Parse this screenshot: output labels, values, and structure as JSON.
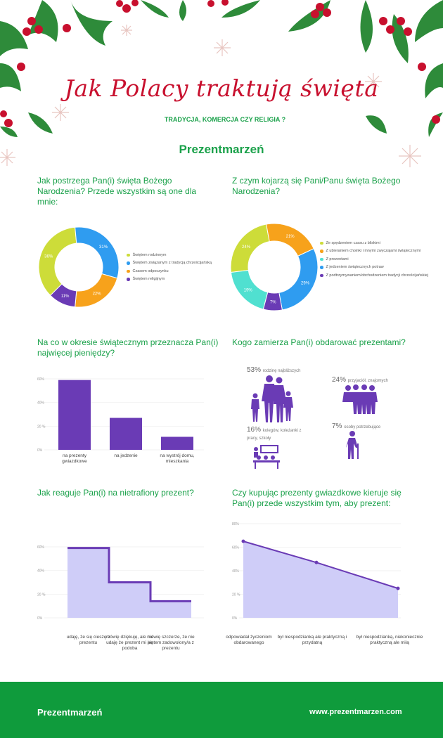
{
  "header": {
    "title": "Jak Polacy traktują święta",
    "subtitle": "TRADYCJA, KOMERCJA CZY RELIGIA ?",
    "brand": "Prezentmarzeń"
  },
  "colors": {
    "green": "#1aa14a",
    "red": "#c8102e",
    "purple": "#6a3bb5",
    "blue": "#2f9cf0",
    "orange": "#f7a21b",
    "lime": "#cddc39",
    "teal": "#50e0d0"
  },
  "q1": {
    "question": "Jak postrzega Pan(i) święta Bożego Narodzenia? Przede wszystkim są one dla mnie:"
  },
  "q2": {
    "question": "Z czym kojarzą się Pani/Panu święta Bożego Narodzenia?"
  },
  "q3": {
    "question": "Na co w okresie świątecznym przeznacza Pan(i) najwięcej pieniędzy?"
  },
  "q4": {
    "question": "Kogo zamierza Pan(i) obdarować prezentami?",
    "items": [
      {
        "pct": "53%",
        "label": "rodzinę najbliższych"
      },
      {
        "pct": "24%",
        "label": "przyjaciół, znajomych"
      },
      {
        "pct": "16%",
        "label": "kolegów, koleżanki z pracy, szkoły"
      },
      {
        "pct": "7%",
        "label": "osoby potrzebujące"
      }
    ]
  },
  "q5": {
    "question": "Jak reaguje Pan(i) na nietrafiony prezent?"
  },
  "q6": {
    "question": "Czy kupując prezenty gwiazdkowe kieruje się Pan(i) przede wszystkim tym, aby prezent:"
  },
  "footer": {
    "brand": "Prezentmarzeń",
    "url": "www.prezentmarzen.com"
  },
  "chart_data": [
    {
      "type": "pie",
      "categories": [
        "Świętem rodzinnym",
        "Świętem związanym z tradycją chrześcijańską",
        "Czasem odpoczynku",
        "Świętem religijnym"
      ],
      "values": [
        36,
        31,
        22,
        11
      ],
      "value_labels": [
        "36%",
        "31%",
        "22%",
        "11%"
      ],
      "colors": [
        "#cddc39",
        "#2f9cf0",
        "#f7a21b",
        "#6a3bb5"
      ]
    },
    {
      "type": "pie",
      "categories": [
        "Ze spędzeniem czasu z bliskimi",
        "Z ubieraniem choinki i innymi zwyczajami świątecznymi",
        "Z prezentami",
        "Z jedzeniem świątecznych potraw",
        "Z podtrzymywaniem/obchodzeniem tradycji chrześcijańskiej"
      ],
      "values": [
        24,
        21,
        19,
        29,
        7
      ],
      "value_labels": [
        "24%",
        "21%",
        "19%",
        "29%",
        "7%"
      ],
      "slice_order": [
        0,
        1,
        3,
        4,
        2
      ],
      "colors": [
        "#cddc39",
        "#f7a21b",
        "#50e0d0",
        "#2f9cf0",
        "#6a3bb5"
      ]
    },
    {
      "type": "bar",
      "categories": [
        "na prezenty gwiazdkowe",
        "na jedzenie",
        "na wystrój domu, mieszkania"
      ],
      "values": [
        59,
        27,
        11
      ],
      "yticks": [
        "60%",
        "40%",
        "20 %",
        "0%"
      ],
      "ylim": [
        0,
        60
      ]
    },
    {
      "type": "area",
      "step": true,
      "categories": [
        "udaję, że się cieszę z prezentu",
        "mówię dziękuję, ale nie udaję że prezent mi się podoba",
        "mówię szczerze, że nie jestem zadowolony/a z prezentu"
      ],
      "values": [
        59,
        30,
        14
      ],
      "yticks": [
        "60%",
        "40%",
        "20 %",
        "0%"
      ],
      "ylim": [
        0,
        60
      ]
    },
    {
      "type": "area",
      "categories": [
        "odpowiadał życzeniom obdarowanego",
        "był niespodzianką ale praktyczną i przydatną",
        "był niespodzianką, niekoniecznie praktyczną ale miłą"
      ],
      "values": [
        65,
        47,
        25
      ],
      "yticks": [
        "80%",
        "60%",
        "40%",
        "20 %",
        "0%"
      ],
      "ylim": [
        0,
        80
      ]
    }
  ]
}
